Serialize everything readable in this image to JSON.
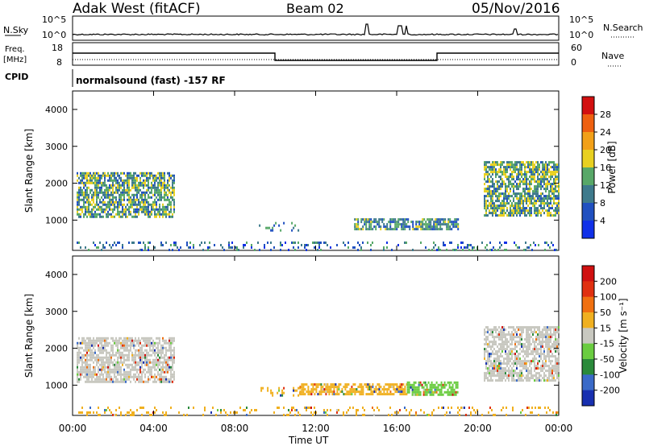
{
  "header": {
    "station": "Adak West (fitACF)",
    "beam": "Beam 02",
    "date": "05/Nov/2016"
  },
  "params": {
    "nsky_label": "N.Sky",
    "nsearch_label": "N.Search",
    "freq_label": "Freq.",
    "freq_unit": "[MHz]",
    "nave_label": "Nave",
    "cpid_label": "CPID",
    "cpid_text": "normalsound (fast) -157 RF",
    "noise_ticks": [
      "10^5",
      "10^0"
    ],
    "freq_ticks": [
      "18",
      "8"
    ],
    "nave_ticks": [
      "60",
      "0"
    ]
  },
  "chart_data": [
    {
      "type": "heatmap",
      "panel": "power",
      "ylabel": "Slant Range [km]",
      "xlim": [
        "00:00",
        "24:00"
      ],
      "ylim": [
        180,
        4500
      ],
      "y_ticks": [
        1000,
        2000,
        3000,
        4000
      ],
      "colorbar": {
        "label": "Power [dB]",
        "ticks": [
          "4",
          "8",
          "12",
          "16",
          "20",
          "24",
          "28"
        ],
        "colors": [
          "#1030e8",
          "#2050c0",
          "#3e7a8c",
          "#58a868",
          "#e8d020",
          "#f2a018",
          "#ee6010",
          "#d21010"
        ]
      },
      "regions": [
        {
          "t0": 0.2,
          "t1": 5.0,
          "r0": 1100,
          "r1": 2300,
          "level": 2.3
        },
        {
          "t0": 9.2,
          "t1": 11.2,
          "r0": 700,
          "r1": 950,
          "level": 1.6
        },
        {
          "t0": 13.9,
          "t1": 19.0,
          "r0": 750,
          "r1": 1050,
          "level": 1.8
        },
        {
          "t0": 20.3,
          "t1": 24.0,
          "r0": 1100,
          "r1": 2600,
          "level": 2.5
        },
        {
          "t0": 0.2,
          "t1": 24.0,
          "r0": 200,
          "r1": 420,
          "level": 1.2
        }
      ]
    },
    {
      "type": "heatmap",
      "panel": "velocity",
      "ylabel": "Slant Range [km]",
      "xlabel": "Time UT",
      "xlim": [
        "00:00",
        "24:00"
      ],
      "ylim": [
        180,
        4500
      ],
      "x_ticks": [
        "00:00",
        "04:00",
        "08:00",
        "12:00",
        "16:00",
        "20:00",
        "00:00"
      ],
      "y_ticks": [
        1000,
        2000,
        3000,
        4000
      ],
      "colorbar": {
        "label": "Velocity [m s⁻¹]",
        "ticks": [
          "200",
          "100",
          "50",
          "15",
          "-15",
          "-50",
          "-100",
          "-200"
        ],
        "colors": [
          "#1830b0",
          "#3a6ac8",
          "#2a8a3a",
          "#6acc40",
          "#c8c8c0",
          "#f0b020",
          "#f07010",
          "#e03010",
          "#d01010"
        ]
      },
      "regions": [
        {
          "t0": 0.2,
          "t1": 5.0,
          "r0": 1100,
          "r1": 2300,
          "level": 4
        },
        {
          "t0": 9.2,
          "t1": 11.2,
          "r0": 700,
          "r1": 950,
          "level": 5
        },
        {
          "t0": 11.2,
          "t1": 16.5,
          "r0": 750,
          "r1": 1050,
          "level": 5
        },
        {
          "t0": 16.5,
          "t1": 19.0,
          "r0": 750,
          "r1": 1100,
          "level": 3
        },
        {
          "t0": 20.3,
          "t1": 24.0,
          "r0": 1100,
          "r1": 2600,
          "level": 4
        },
        {
          "t0": 0.2,
          "t1": 24.0,
          "r0": 200,
          "r1": 420,
          "level": 5
        }
      ]
    }
  ]
}
